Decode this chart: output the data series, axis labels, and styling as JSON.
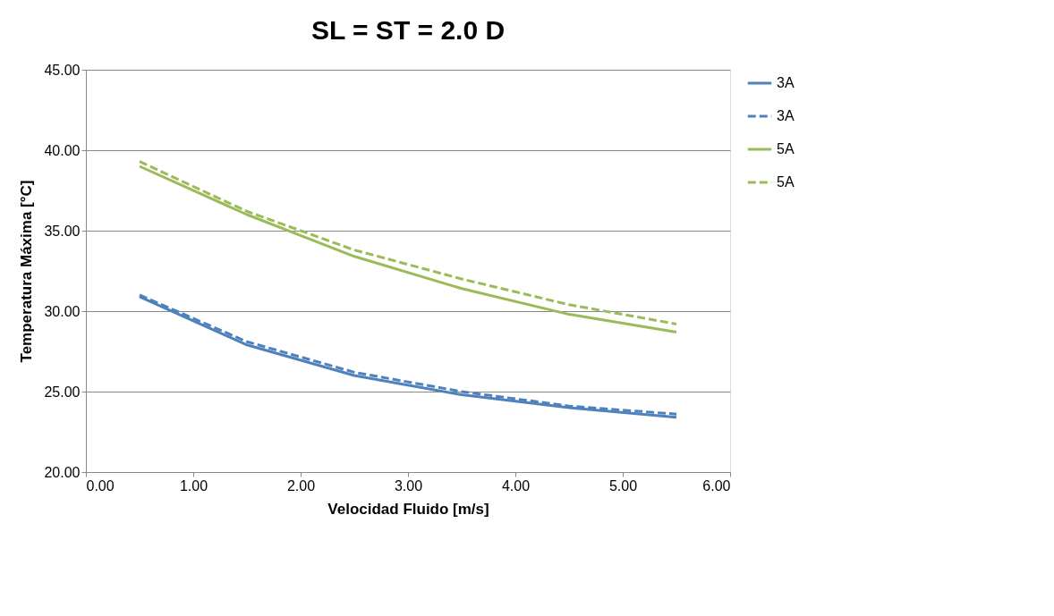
{
  "chart_data": {
    "type": "line",
    "title": "SL = ST = 2.0 D",
    "xlabel": "Velocidad Fluido [m/s]",
    "ylabel": "Temperatura Máxima [°C]",
    "x": [
      0.5,
      1.5,
      2.5,
      3.5,
      4.5,
      5.5
    ],
    "series": [
      {
        "name": "3A",
        "color": "#4f81bd",
        "line_style": "solid",
        "values": [
          30.9,
          27.9,
          26.0,
          24.8,
          24.0,
          23.4
        ]
      },
      {
        "name": "3A",
        "color": "#4f81bd",
        "line_style": "dashed",
        "values": [
          31.0,
          28.1,
          26.2,
          25.0,
          24.1,
          23.6
        ]
      },
      {
        "name": "5A",
        "color": "#9bbb59",
        "line_style": "solid",
        "values": [
          39.0,
          36.0,
          33.4,
          31.4,
          29.8,
          28.7
        ]
      },
      {
        "name": "5A",
        "color": "#9bbb59",
        "line_style": "dashed",
        "values": [
          39.3,
          36.2,
          33.8,
          32.0,
          30.4,
          29.2
        ]
      }
    ],
    "xlim": [
      0,
      6
    ],
    "xticks": [
      {
        "value": 0,
        "label": "0.00"
      },
      {
        "value": 1,
        "label": "1.00"
      },
      {
        "value": 2,
        "label": "2.00"
      },
      {
        "value": 3,
        "label": "3.00"
      },
      {
        "value": 4,
        "label": "4.00"
      },
      {
        "value": 5,
        "label": "5.00"
      },
      {
        "value": 6,
        "label": "6.00"
      }
    ],
    "ylim": [
      20,
      45
    ],
    "yticks": [
      {
        "value": 20,
        "label": "20.00"
      },
      {
        "value": 25,
        "label": "25.00"
      },
      {
        "value": 30,
        "label": "30.00"
      },
      {
        "value": 35,
        "label": "35.00"
      },
      {
        "value": 40,
        "label": "40.00"
      },
      {
        "value": 45,
        "label": "45.00"
      }
    ],
    "grid": "y",
    "legend": "right"
  }
}
